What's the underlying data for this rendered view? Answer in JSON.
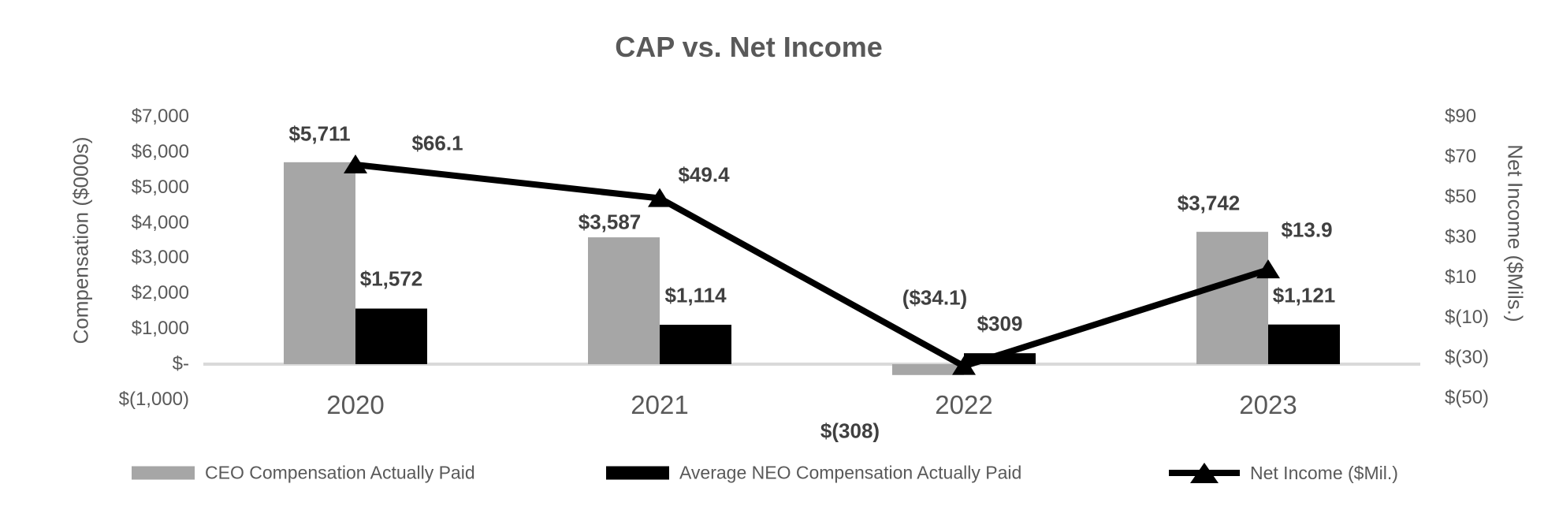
{
  "title": "CAP vs. Net Income",
  "chart_data": {
    "type": "bar+line combo",
    "categories": [
      "2020",
      "2021",
      "2022",
      "2023"
    ],
    "series": [
      {
        "name": "CEO Compensation Actually Paid",
        "type": "bar",
        "axis": "left",
        "color": "#A6A6A6",
        "values": [
          5711,
          3587,
          -308,
          3742
        ],
        "labels": [
          "$5,711",
          "$3,587",
          "$(308)",
          "$3,742"
        ]
      },
      {
        "name": "Average NEO Compensation Actually Paid",
        "type": "bar",
        "axis": "left",
        "color": "#000000",
        "values": [
          1572,
          1114,
          309,
          1121
        ],
        "labels": [
          "$1,572",
          "$1,114",
          "$309",
          "$1,121"
        ]
      },
      {
        "name": "Net Income ($Mil.)",
        "type": "line",
        "axis": "right",
        "color": "#000000",
        "marker": "triangle",
        "values": [
          66.1,
          49.4,
          -34.1,
          13.9
        ],
        "labels": [
          "$66.1",
          "$49.4",
          "($34.1)",
          "$13.9"
        ]
      }
    ],
    "left_axis": {
      "title": "Compensation ($000s)",
      "min": -1000,
      "max": 7000,
      "ticks": [
        7000,
        6000,
        5000,
        4000,
        3000,
        2000,
        1000,
        0,
        -1000
      ],
      "tick_labels": [
        "$7,000",
        "$6,000",
        "$5,000",
        "$4,000",
        "$3,000",
        "$2,000",
        "$1,000",
        "$-",
        "$(1,000)"
      ]
    },
    "right_axis": {
      "title": "Net Income ($Mils.)",
      "min": -50,
      "max": 90,
      "ticks": [
        90,
        70,
        50,
        30,
        10,
        -10,
        -30,
        -50
      ],
      "tick_labels": [
        "$90",
        "$70",
        "$50",
        "$30",
        "$10",
        "$(10)",
        "$(30)",
        "$(50)"
      ]
    },
    "axis_line_color": "#D9D9D9",
    "grid": false,
    "legend_position": "bottom"
  }
}
